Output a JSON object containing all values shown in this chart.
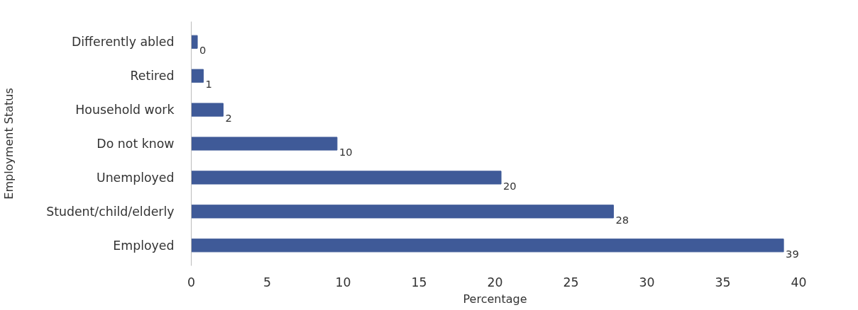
{
  "chart_data": {
    "type": "bar",
    "orientation": "horizontal",
    "xlabel": "Percentage",
    "ylabel": "Employment Status",
    "categories": [
      "Differently abled",
      "Retired",
      "Household work",
      "Do not know",
      "Unemployed",
      "Student/child/elderly",
      "Employed"
    ],
    "values": [
      0.4,
      0.8,
      2.1,
      9.6,
      20.4,
      27.8,
      39.0
    ],
    "value_labels": [
      "0",
      "1",
      "2",
      "10",
      "20",
      "28",
      "39"
    ],
    "color": "#3f5a98",
    "xlim": [
      0,
      40
    ],
    "xticks": [
      0,
      5,
      10,
      15,
      20,
      25,
      30,
      35,
      40
    ],
    "grid": false
  }
}
